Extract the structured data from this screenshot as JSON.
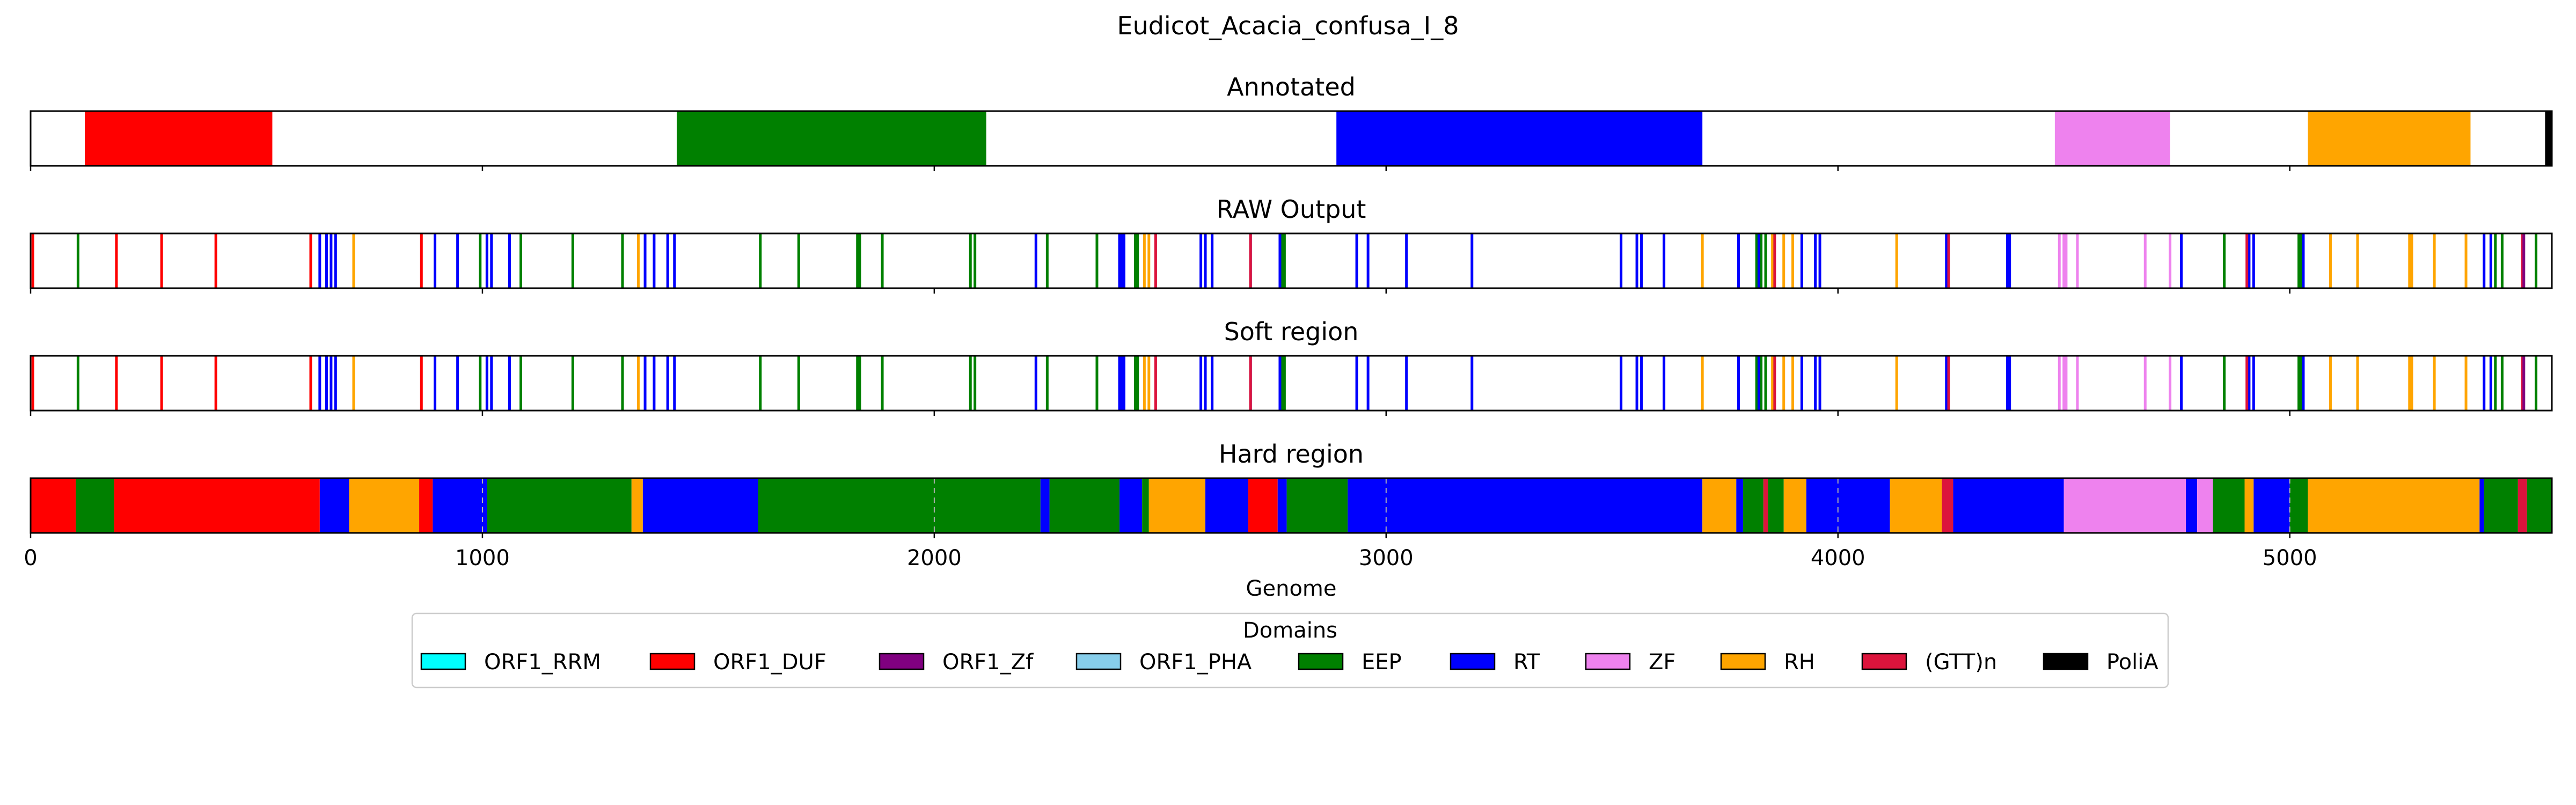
{
  "figure": {
    "title": "Eudicot_Acacia_confusa_I_8"
  },
  "chart_data": {
    "type": "bar",
    "title": "Eudicot_Acacia_confusa_I_8",
    "xlabel": "Genome",
    "xlim": [
      0,
      5580
    ],
    "xticks": [
      0,
      1000,
      2000,
      3000,
      4000,
      5000
    ],
    "colors": {
      "ORF1_RRM": "#00ffff",
      "ORF1_DUF": "#ff0000",
      "ORF1_Zf": "#800080",
      "ORF1_PHA": "#87ceeb",
      "EEP": "#008000",
      "RT": "#0000ff",
      "ZF": "#ee82ee",
      "RH": "#ffa500",
      "(GTT)n": "#dc143c",
      "PoliA": "#000000"
    },
    "legend": {
      "title": "Domains",
      "position": "bottom-center",
      "entries": [
        "ORF1_RRM",
        "ORF1_DUF",
        "ORF1_Zf",
        "ORF1_PHA",
        "EEP",
        "RT",
        "ZF",
        "RH",
        "(GTT)n",
        "PoliA"
      ]
    },
    "panels": [
      {
        "title": "Annotated",
        "segments": [
          {
            "domain": "ORF1_DUF",
            "start": 120,
            "end": 535
          },
          {
            "domain": "EEP",
            "start": 1430,
            "end": 2115
          },
          {
            "domain": "RT",
            "start": 2890,
            "end": 3700
          },
          {
            "domain": "ZF",
            "start": 4480,
            "end": 4735
          },
          {
            "domain": "RH",
            "start": 5040,
            "end": 5400
          },
          {
            "domain": "PoliA",
            "start": 5565,
            "end": 5580
          }
        ]
      },
      {
        "title": "RAW Output",
        "marks": [
          {
            "domain": "ORF1_DUF",
            "x": [
              5,
              190,
              290,
              410,
              620,
              865
            ]
          },
          {
            "domain": "EEP",
            "x": [
              105,
              995,
              1085,
              1200,
              1310,
              1615,
              1700,
              1830,
              1835,
              1885,
              2080,
              2090,
              2250,
              2360,
              2445,
              2450,
              2770,
              2775,
              3820,
              3830,
              3840,
              4855,
              5020,
              5025,
              5455,
              5470,
              5545
            ]
          },
          {
            "domain": "RT",
            "x": [
              640,
              655,
              665,
              675,
              895,
              945,
              1010,
              1020,
              1060,
              1360,
              1380,
              1410,
              1425,
              2225,
              2410,
              2415,
              2420,
              2590,
              2600,
              2615,
              2700,
              2765,
              2935,
              2960,
              3045,
              3190,
              3520,
              3555,
              3565,
              3615,
              3780,
              3825,
              3920,
              3950,
              3960,
              4240,
              4245,
              4375,
              4380,
              4760,
              4910,
              4920,
              5030,
              5430,
              5445
            ]
          },
          {
            "domain": "RH",
            "x": [
              715,
              1345,
              2465,
              2475,
              3700,
              3855,
              3880,
              3900,
              4130,
              5090,
              5150,
              5265,
              5270,
              5320,
              5390
            ]
          },
          {
            "domain": "(GTT)n",
            "x": [
              2490,
              2700,
              3860,
              4245,
              4905,
              5515
            ]
          },
          {
            "domain": "ZF",
            "x": [
              4490,
              4500,
              4505,
              4530,
              4680,
              4735
            ]
          },
          {
            "domain": "ORF1_Zf",
            "x": [
              5518
            ]
          }
        ]
      },
      {
        "title": "Soft region",
        "marks": [
          {
            "domain": "ORF1_DUF",
            "x": [
              5,
              190,
              290,
              410,
              620,
              865
            ]
          },
          {
            "domain": "EEP",
            "x": [
              105,
              995,
              1085,
              1200,
              1310,
              1615,
              1700,
              1830,
              1835,
              1885,
              2080,
              2090,
              2250,
              2360,
              2445,
              2450,
              2770,
              2775,
              3820,
              3830,
              3840,
              4855,
              5020,
              5025,
              5455,
              5470,
              5545
            ]
          },
          {
            "domain": "RT",
            "x": [
              640,
              655,
              665,
              675,
              895,
              945,
              1010,
              1020,
              1060,
              1360,
              1380,
              1410,
              1425,
              2225,
              2410,
              2415,
              2420,
              2590,
              2600,
              2615,
              2700,
              2765,
              2935,
              2960,
              3045,
              3190,
              3520,
              3555,
              3565,
              3615,
              3780,
              3825,
              3920,
              3950,
              3960,
              4240,
              4245,
              4375,
              4380,
              4760,
              4910,
              4920,
              5030,
              5430,
              5445
            ]
          },
          {
            "domain": "RH",
            "x": [
              715,
              1345,
              2465,
              2475,
              3700,
              3855,
              3880,
              3900,
              4130,
              5090,
              5150,
              5265,
              5270,
              5320,
              5390
            ]
          },
          {
            "domain": "(GTT)n",
            "x": [
              2490,
              2700,
              3860,
              4245,
              4905,
              5515
            ]
          },
          {
            "domain": "ZF",
            "x": [
              4490,
              4500,
              4505,
              4530,
              4680,
              4735
            ]
          },
          {
            "domain": "ORF1_Zf",
            "x": [
              5518
            ]
          }
        ]
      },
      {
        "title": "Hard region",
        "segments": [
          {
            "domain": "ORF1_DUF",
            "start": 0,
            "end": 100
          },
          {
            "domain": "EEP",
            "start": 100,
            "end": 185
          },
          {
            "domain": "ORF1_DUF",
            "start": 185,
            "end": 640
          },
          {
            "domain": "RT",
            "start": 640,
            "end": 705
          },
          {
            "domain": "RH",
            "start": 705,
            "end": 860
          },
          {
            "domain": "ORF1_DUF",
            "start": 860,
            "end": 890
          },
          {
            "domain": "RT",
            "start": 890,
            "end": 1010
          },
          {
            "domain": "EEP",
            "start": 1010,
            "end": 1330
          },
          {
            "domain": "RH",
            "start": 1330,
            "end": 1355
          },
          {
            "domain": "RT",
            "start": 1355,
            "end": 1610
          },
          {
            "domain": "EEP",
            "start": 1610,
            "end": 2235
          },
          {
            "domain": "RT",
            "start": 2235,
            "end": 2255
          },
          {
            "domain": "EEP",
            "start": 2255,
            "end": 2410
          },
          {
            "domain": "RT",
            "start": 2410,
            "end": 2460
          },
          {
            "domain": "EEP",
            "start": 2460,
            "end": 2475
          },
          {
            "domain": "RH",
            "start": 2475,
            "end": 2600
          },
          {
            "domain": "RT",
            "start": 2600,
            "end": 2695
          },
          {
            "domain": "ORF1_DUF",
            "start": 2695,
            "end": 2760
          },
          {
            "domain": "RT",
            "start": 2760,
            "end": 2780
          },
          {
            "domain": "EEP",
            "start": 2780,
            "end": 2915
          },
          {
            "domain": "RT",
            "start": 2915,
            "end": 3700
          },
          {
            "domain": "RH",
            "start": 3700,
            "end": 3775
          },
          {
            "domain": "RT",
            "start": 3775,
            "end": 3790
          },
          {
            "domain": "EEP",
            "start": 3790,
            "end": 3835
          },
          {
            "domain": "(GTT)n",
            "start": 3835,
            "end": 3845
          },
          {
            "domain": "EEP",
            "start": 3845,
            "end": 3880
          },
          {
            "domain": "RH",
            "start": 3880,
            "end": 3930
          },
          {
            "domain": "RT",
            "start": 3930,
            "end": 4115
          },
          {
            "domain": "RH",
            "start": 4115,
            "end": 4230
          },
          {
            "domain": "(GTT)n",
            "start": 4230,
            "end": 4255
          },
          {
            "domain": "RT",
            "start": 4255,
            "end": 4500
          },
          {
            "domain": "ZF",
            "start": 4500,
            "end": 4770
          },
          {
            "domain": "RT",
            "start": 4770,
            "end": 4795
          },
          {
            "domain": "ZF",
            "start": 4795,
            "end": 4830
          },
          {
            "domain": "EEP",
            "start": 4830,
            "end": 4900
          },
          {
            "domain": "RH",
            "start": 4900,
            "end": 4920
          },
          {
            "domain": "RT",
            "start": 4920,
            "end": 5000
          },
          {
            "domain": "EEP",
            "start": 5000,
            "end": 5040
          },
          {
            "domain": "RH",
            "start": 5040,
            "end": 5420
          },
          {
            "domain": "RT",
            "start": 5420,
            "end": 5430
          },
          {
            "domain": "EEP",
            "start": 5430,
            "end": 5505
          },
          {
            "domain": "(GTT)n",
            "start": 5505,
            "end": 5525
          },
          {
            "domain": "EEP",
            "start": 5525,
            "end": 5580
          }
        ]
      }
    ]
  }
}
